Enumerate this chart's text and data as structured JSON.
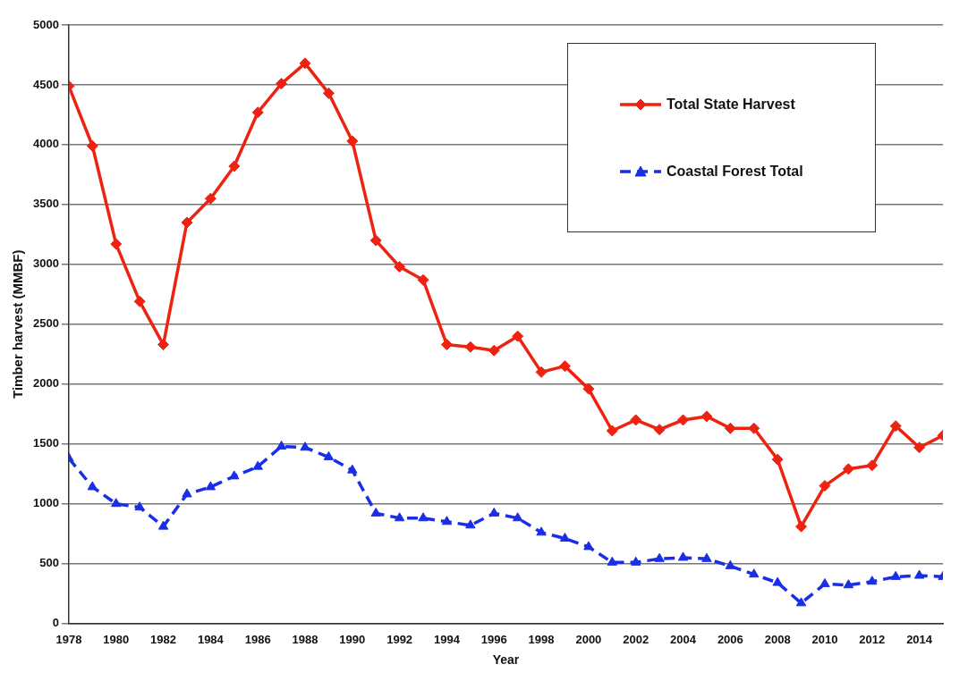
{
  "chart_data": {
    "type": "line",
    "xlabel": "Year",
    "ylabel": "Timber harvest (MMBF)",
    "x": [
      1978,
      1979,
      1980,
      1981,
      1982,
      1983,
      1984,
      1985,
      1986,
      1987,
      1988,
      1989,
      1990,
      1991,
      1992,
      1993,
      1994,
      1995,
      1996,
      1997,
      1998,
      1999,
      2000,
      2001,
      2002,
      2003,
      2004,
      2005,
      2006,
      2007,
      2008,
      2009,
      2010,
      2011,
      2012,
      2013,
      2014,
      2015
    ],
    "series": [
      {
        "name": "Total State Harvest",
        "color": "#ee2211",
        "marker": "diamond",
        "line_style": "solid",
        "values": [
          4490,
          3990,
          3170,
          2690,
          2330,
          3350,
          3550,
          3820,
          4270,
          4510,
          4680,
          4430,
          4030,
          3200,
          2980,
          2870,
          2330,
          2310,
          2280,
          2400,
          2100,
          2150,
          1960,
          1610,
          1700,
          1620,
          1700,
          1730,
          1630,
          1630,
          1370,
          810,
          1150,
          1290,
          1320,
          1650,
          1470,
          1570
        ]
      },
      {
        "name": "Coastal Forest Total",
        "color": "#1a2ee6",
        "marker": "triangle",
        "line_style": "dashed",
        "values": [
          1380,
          1140,
          1000,
          970,
          810,
          1080,
          1140,
          1230,
          1310,
          1480,
          1470,
          1390,
          1280,
          920,
          880,
          880,
          850,
          820,
          920,
          880,
          760,
          710,
          640,
          510,
          510,
          540,
          550,
          540,
          480,
          410,
          340,
          170,
          330,
          320,
          350,
          390,
          400,
          390
        ]
      }
    ],
    "xlim": [
      1978,
      2015
    ],
    "xticks": [
      1978,
      1980,
      1982,
      1984,
      1986,
      1988,
      1990,
      1992,
      1994,
      1996,
      1998,
      2000,
      2002,
      2004,
      2006,
      2008,
      2010,
      2012,
      2014
    ],
    "ylim": [
      0,
      5000
    ],
    "yticks": [
      0,
      500,
      1000,
      1500,
      2000,
      2500,
      3000,
      3500,
      4000,
      4500,
      5000
    ],
    "grid": "y",
    "legend": "top right"
  }
}
